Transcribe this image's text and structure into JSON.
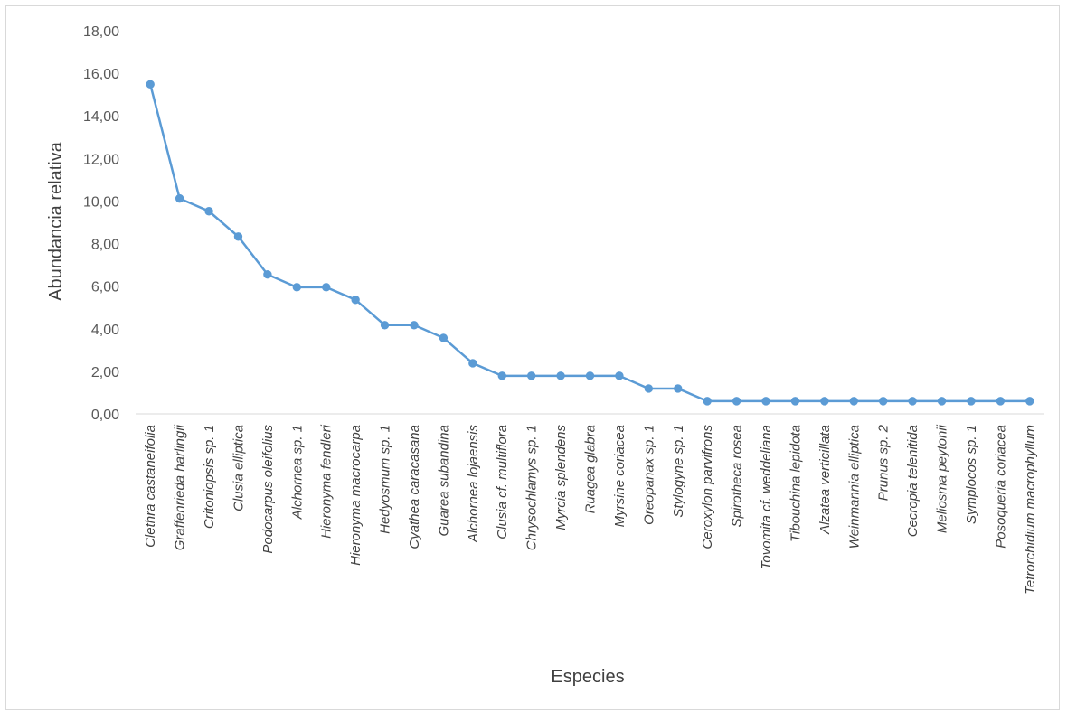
{
  "chart_data": {
    "type": "line",
    "xlabel": "Especies",
    "ylabel": "Abundancia relativa",
    "ylim": [
      0,
      18
    ],
    "ytick_step": 2,
    "ytick_labels": [
      "0,00",
      "2,00",
      "4,00",
      "6,00",
      "8,00",
      "10,00",
      "12,00",
      "14,00",
      "16,00",
      "18,00"
    ],
    "grid": false,
    "legend": "none",
    "line_color": "#5b9bd5",
    "categories": [
      "Clethra castaneifolia",
      "Graffenrieda harlingii",
      "Critoniopsis sp. 1",
      "Clusia elliptica",
      "Podocarpus oleifolius",
      "Alchornea sp. 1",
      "Hieronyma fendleri",
      "Hieronyma macrocarpa",
      "Hedyosmum sp. 1",
      "Cyathea caracasana",
      "Guarea subandina",
      "Alchornea lojaensis",
      "Clusia cf. multiflora",
      "Chrysochlamys sp. 1",
      "Myrcia splendens",
      "Ruagea glabra",
      "Myrsine coriacea",
      "Oreopanax sp. 1",
      "Stylogyne sp. 1",
      "Ceroxylon parvifrons",
      "Spirotheca rosea",
      "Tovomita cf. weddeliana",
      "Tibouchina lepidota",
      "Alzatea verticillata",
      "Weinmannia elliptica",
      "Prunus sp. 2",
      "Cecropia telenitida",
      "Meliosma peytonii",
      "Symplocos sp. 1",
      "Posoqueria coriacea",
      "Tetrorchidium macrophyllum"
    ],
    "series": [
      {
        "values": [
          15.48,
          10.12,
          9.52,
          8.33,
          6.55,
          5.95,
          5.95,
          5.36,
          4.17,
          4.17,
          3.57,
          2.38,
          1.79,
          1.79,
          1.79,
          1.79,
          1.79,
          1.19,
          1.19,
          0.6,
          0.6,
          0.6,
          0.6,
          0.6,
          0.6,
          0.6,
          0.6,
          0.6,
          0.6,
          0.6,
          0.6
        ]
      }
    ]
  }
}
